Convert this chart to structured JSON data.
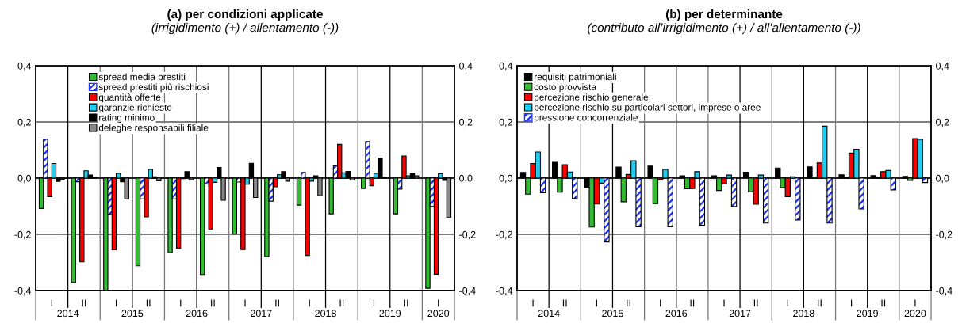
{
  "chart_data": [
    {
      "type": "bar",
      "title": "(a) per condizioni applicate",
      "subtitle": "(irrigidimento (+) / allentamento (-))",
      "categories": [
        "I",
        "II",
        "I",
        "II",
        "I",
        "II",
        "I",
        "II",
        "I",
        "II",
        "I",
        "II",
        "I"
      ],
      "annotations": [
        "2014",
        "2015",
        "2016",
        "2017",
        "2018",
        "2019",
        "2020"
      ],
      "series": [
        {
          "name": "spread media prestiti",
          "color": "#33bb33",
          "values": [
            -0.108,
            -0.371,
            -0.4,
            -0.312,
            -0.265,
            -0.343,
            -0.199,
            -0.279,
            -0.096,
            -0.127,
            -0.037,
            -0.127,
            -0.392
          ]
        },
        {
          "name": "spread prestiti più rischiosi",
          "color": "#1a33ff",
          "values": [
            0.139,
            -0.013,
            -0.129,
            -0.074,
            -0.074,
            -0.021,
            -0.014,
            -0.082,
            0.02,
            0.044,
            0.13,
            -0.039,
            -0.101
          ]
        },
        {
          "name": "quantità offerte",
          "color": "#ff0000",
          "values": [
            -0.066,
            -0.298,
            -0.255,
            -0.138,
            -0.249,
            -0.181,
            -0.254,
            -0.031,
            -0.275,
            0.12,
            -0.027,
            0.079,
            -0.342
          ]
        },
        {
          "name": "garanzie richieste",
          "color": "#22ccee",
          "values": [
            0.052,
            0.026,
            0.017,
            0.031,
            -0.002,
            -0.015,
            -0.022,
            0.012,
            -0.011,
            0.019,
            0.017,
            0.008,
            0.016
          ]
        },
        {
          "name": "rating minimo",
          "color": "#000000",
          "values": [
            -0.012,
            0.011,
            -0.013,
            0.005,
            0.023,
            0.038,
            0.053,
            0.023,
            0.008,
            0.024,
            0.072,
            0.016,
            -0.008
          ]
        },
        {
          "name": "deleghe responsabili filiale",
          "color": "#888888",
          "values": [
            -0.004,
            0.002,
            -0.074,
            -0.01,
            -0.006,
            -0.079,
            -0.069,
            -0.011,
            -0.062,
            -0.007,
            0.003,
            0.008,
            -0.14
          ]
        }
      ],
      "ylim": [
        -0.4,
        0.4
      ],
      "yticks": [
        {
          "value": -0.4,
          "label": "-0,4"
        },
        {
          "value": -0.2,
          "label": "-0,2"
        },
        {
          "value": 0,
          "label": "0,0"
        },
        {
          "value": 0.2,
          "label": "0,2"
        },
        {
          "value": 0.4,
          "label": "0,4"
        }
      ],
      "y2lim": [
        -0.4,
        0.4
      ],
      "y2ticks": [
        {
          "value": -0.4,
          "label": "-0,4"
        },
        {
          "value": -0.2,
          "label": "-0,2"
        },
        {
          "value": 0,
          "label": "0,0"
        },
        {
          "value": 0.2,
          "label": "0,2"
        },
        {
          "value": 0.4,
          "label": "0,4"
        }
      ],
      "grid": true,
      "legend": "top left"
    },
    {
      "type": "bar",
      "title": "(b) per determinante",
      "subtitle": "(contributo all’irrigidimento (+) / all’allentamento (-))",
      "categories": [
        "I",
        "II",
        "I",
        "II",
        "I",
        "II",
        "I",
        "II",
        "I",
        "II",
        "I",
        "II",
        "I"
      ],
      "annotations": [
        "2014",
        "2015",
        "2016",
        "2017",
        "2018",
        "2019",
        "2020"
      ],
      "series": [
        {
          "name": "requisiti patrimoniali",
          "color": "#000000",
          "values": [
            0.02,
            0.056,
            -0.032,
            0.039,
            0.043,
            0.008,
            0.008,
            0.021,
            0.036,
            0.04,
            0.012,
            0.009,
            0.006
          ]
        },
        {
          "name": "costo provvista",
          "color": "#33bb33",
          "values": [
            -0.057,
            -0.05,
            -0.174,
            -0.084,
            -0.091,
            -0.038,
            -0.044,
            -0.049,
            -0.034,
            0.004,
            0.003,
            0.002,
            -0.008
          ]
        },
        {
          "name": "percezione rischio generale",
          "color": "#ff0000",
          "values": [
            0.052,
            0.048,
            -0.092,
            0.013,
            -0.006,
            -0.037,
            -0.02,
            -0.093,
            -0.066,
            0.054,
            0.089,
            0.023,
            0.141
          ]
        },
        {
          "name": "percezione rischio su particolari settori, imprese o aree",
          "color": "#22ccee",
          "values": [
            0.093,
            0.022,
            -0.018,
            0.062,
            0.031,
            0.023,
            0.011,
            0.011,
            0.005,
            0.185,
            0.103,
            0.027,
            0.138
          ]
        },
        {
          "name": "pressione concorrenziale",
          "color": "#1a33ff",
          "values": [
            -0.052,
            -0.073,
            -0.227,
            -0.173,
            -0.173,
            -0.168,
            -0.101,
            -0.16,
            -0.149,
            -0.16,
            -0.11,
            -0.042,
            -0.016
          ]
        }
      ],
      "ylim": [
        -0.4,
        0.4
      ],
      "yticks": [
        {
          "value": -0.4,
          "label": "-0,4"
        },
        {
          "value": -0.2,
          "label": "-0,2"
        },
        {
          "value": 0,
          "label": "0,0"
        },
        {
          "value": 0.2,
          "label": "0,2"
        },
        {
          "value": 0.4,
          "label": "0,4"
        }
      ],
      "y2lim": [
        -0.4,
        0.4
      ],
      "y2ticks": [
        {
          "value": -0.4,
          "label": "-0,4"
        },
        {
          "value": -0.2,
          "label": "-0,2"
        },
        {
          "value": 0,
          "label": "0,0"
        },
        {
          "value": 0.2,
          "label": "0,2"
        },
        {
          "value": 0.4,
          "label": "0,4"
        }
      ],
      "grid": true,
      "legend": "top left"
    }
  ]
}
